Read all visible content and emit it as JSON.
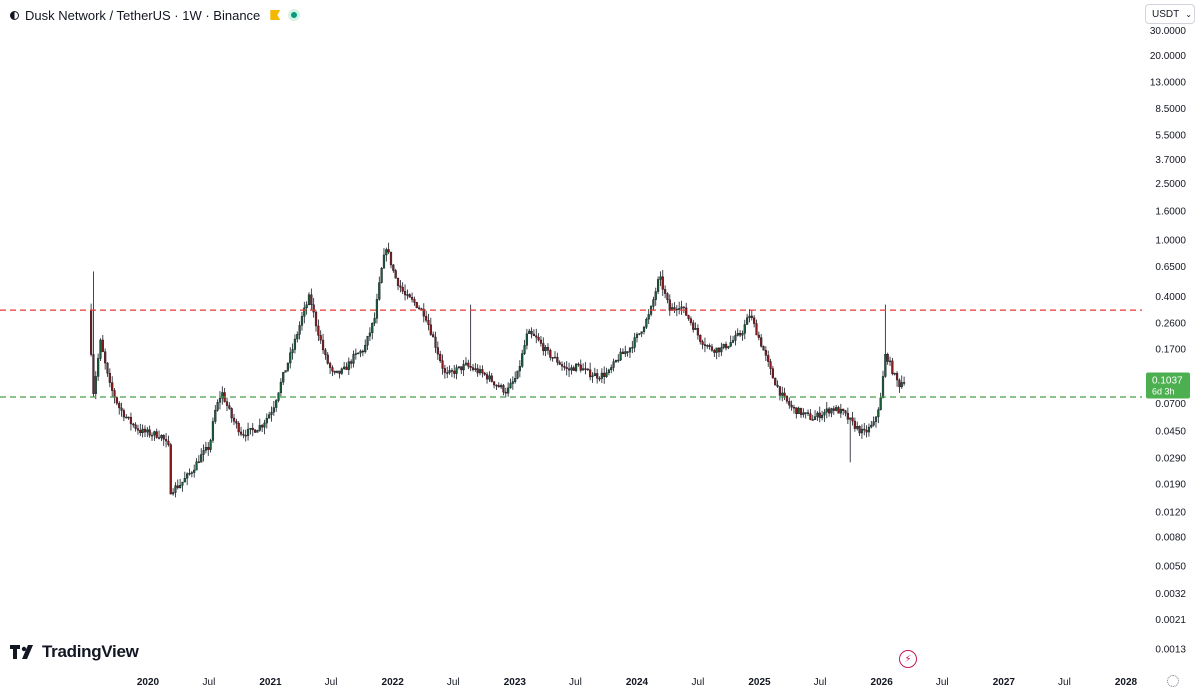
{
  "header": {
    "title": "Dusk Network / TetherUS · 1W · Binance"
  },
  "currency_select": {
    "value": "USDT"
  },
  "brand": {
    "name": "TradingView"
  },
  "colors": {
    "up": "#26a69a",
    "down": "#ef5350",
    "wick": "#131722",
    "candle_up": "#1b5e3a",
    "candle_down": "#8b1a1a",
    "resistance": "#e53935",
    "support": "#43a047",
    "price_tag": "#4caf50"
  },
  "icons": [
    "half-circle-icon",
    "flag-icon",
    "status-dot-icon",
    "chevron-down-icon",
    "tradingview-logo-icon",
    "bolt-icon",
    "settings-icon"
  ],
  "chart_data": {
    "type": "candlestick",
    "symbol": "DUSK/USDT",
    "interval": "1W",
    "scale": "log",
    "ylim": [
      0.001,
      30
    ],
    "y_ticks": [
      "30.0000",
      "20.0000",
      "13.0000",
      "8.5000",
      "5.5000",
      "3.7000",
      "2.5000",
      "1.6000",
      "1.0000",
      "0.6500",
      "0.4000",
      "0.2600",
      "0.1700",
      "0.0700",
      "0.0450",
      "0.0290",
      "0.0190",
      "0.0120",
      "0.0080",
      "0.0050",
      "0.0032",
      "0.0021",
      "0.0013"
    ],
    "x_labels": [
      {
        "label": "2020",
        "date": "2020-01-01",
        "bold": true
      },
      {
        "label": "Jul",
        "date": "2020-07-01",
        "bold": false
      },
      {
        "label": "2021",
        "date": "2021-01-01",
        "bold": true
      },
      {
        "label": "Jul",
        "date": "2021-07-01",
        "bold": false
      },
      {
        "label": "2022",
        "date": "2022-01-01",
        "bold": true
      },
      {
        "label": "Jul",
        "date": "2022-07-01",
        "bold": false
      },
      {
        "label": "2023",
        "date": "2023-01-01",
        "bold": true
      },
      {
        "label": "Jul",
        "date": "2023-07-01",
        "bold": false
      },
      {
        "label": "2024",
        "date": "2024-01-01",
        "bold": true
      },
      {
        "label": "Jul",
        "date": "2024-07-01",
        "bold": false
      },
      {
        "label": "2025",
        "date": "2025-01-01",
        "bold": true
      },
      {
        "label": "Jul",
        "date": "2025-07-01",
        "bold": false
      },
      {
        "label": "2026",
        "date": "2026-01-01",
        "bold": true
      },
      {
        "label": "Jul",
        "date": "2026-07-01",
        "bold": false
      },
      {
        "label": "2027",
        "date": "2027-01-01",
        "bold": true
      },
      {
        "label": "Jul",
        "date": "2027-07-01",
        "bold": false
      },
      {
        "label": "2028",
        "date": "2028-01-01",
        "bold": true
      }
    ],
    "price_path": [
      [
        "2019-07-15",
        0.32
      ],
      [
        "2019-07-29",
        0.085
      ],
      [
        "2019-08-19",
        0.19
      ],
      [
        "2019-09-15",
        0.095
      ],
      [
        "2019-10-15",
        0.065
      ],
      [
        "2019-11-15",
        0.052
      ],
      [
        "2019-12-15",
        0.045
      ],
      [
        "2020-01-15",
        0.043
      ],
      [
        "2020-02-15",
        0.042
      ],
      [
        "2020-03-10",
        0.034
      ],
      [
        "2020-03-15",
        0.017
      ],
      [
        "2020-04-15",
        0.019
      ],
      [
        "2020-05-15",
        0.023
      ],
      [
        "2020-06-15",
        0.03
      ],
      [
        "2020-07-10",
        0.035
      ],
      [
        "2020-07-25",
        0.06
      ],
      [
        "2020-08-15",
        0.085
      ],
      [
        "2020-09-15",
        0.055
      ],
      [
        "2020-10-15",
        0.043
      ],
      [
        "2020-11-15",
        0.045
      ],
      [
        "2020-12-15",
        0.05
      ],
      [
        "2021-01-15",
        0.065
      ],
      [
        "2021-02-15",
        0.11
      ],
      [
        "2021-03-15",
        0.17
      ],
      [
        "2021-04-15",
        0.3
      ],
      [
        "2021-05-05",
        0.4
      ],
      [
        "2021-05-25",
        0.25
      ],
      [
        "2021-06-20",
        0.15
      ],
      [
        "2021-07-15",
        0.11
      ],
      [
        "2021-08-15",
        0.12
      ],
      [
        "2021-09-15",
        0.15
      ],
      [
        "2021-10-15",
        0.17
      ],
      [
        "2021-11-15",
        0.28
      ],
      [
        "2021-12-05",
        0.6
      ],
      [
        "2021-12-20",
        0.9
      ],
      [
        "2022-01-15",
        0.55
      ],
      [
        "2022-02-15",
        0.4
      ],
      [
        "2022-03-15",
        0.36
      ],
      [
        "2022-04-15",
        0.3
      ],
      [
        "2022-05-10",
        0.2
      ],
      [
        "2022-06-15",
        0.11
      ],
      [
        "2022-07-15",
        0.12
      ],
      [
        "2022-08-15",
        0.13
      ],
      [
        "2022-09-15",
        0.12
      ],
      [
        "2022-10-15",
        0.11
      ],
      [
        "2022-11-15",
        0.095
      ],
      [
        "2022-12-15",
        0.085
      ],
      [
        "2023-01-15",
        0.11
      ],
      [
        "2023-02-15",
        0.22
      ],
      [
        "2023-03-15",
        0.2
      ],
      [
        "2023-04-15",
        0.16
      ],
      [
        "2023-05-15",
        0.14
      ],
      [
        "2023-06-15",
        0.12
      ],
      [
        "2023-07-15",
        0.13
      ],
      [
        "2023-08-15",
        0.115
      ],
      [
        "2023-09-15",
        0.11
      ],
      [
        "2023-10-15",
        0.115
      ],
      [
        "2023-11-15",
        0.15
      ],
      [
        "2023-12-15",
        0.17
      ],
      [
        "2024-01-15",
        0.22
      ],
      [
        "2024-02-15",
        0.3
      ],
      [
        "2024-03-15",
        0.55
      ],
      [
        "2024-04-15",
        0.32
      ],
      [
        "2024-05-15",
        0.35
      ],
      [
        "2024-06-15",
        0.27
      ],
      [
        "2024-07-15",
        0.2
      ],
      [
        "2024-08-15",
        0.17
      ],
      [
        "2024-09-15",
        0.17
      ],
      [
        "2024-10-15",
        0.19
      ],
      [
        "2024-11-15",
        0.22
      ],
      [
        "2024-12-10",
        0.3
      ],
      [
        "2025-01-15",
        0.18
      ],
      [
        "2025-02-15",
        0.11
      ],
      [
        "2025-03-15",
        0.08
      ],
      [
        "2025-04-15",
        0.065
      ],
      [
        "2025-05-15",
        0.06
      ],
      [
        "2025-06-15",
        0.055
      ],
      [
        "2025-07-15",
        0.06
      ],
      [
        "2025-08-15",
        0.065
      ],
      [
        "2025-09-15",
        0.06
      ],
      [
        "2025-10-15",
        0.05
      ],
      [
        "2025-11-15",
        0.043
      ],
      [
        "2025-12-15",
        0.05
      ],
      [
        "2026-01-05",
        0.075
      ],
      [
        "2026-01-20",
        0.16
      ],
      [
        "2026-02-15",
        0.11
      ],
      [
        "2026-03-01",
        0.095
      ],
      [
        "2026-03-15",
        0.1037
      ]
    ],
    "wick_spikes": [
      {
        "date": "2019-07-22",
        "high": 0.6
      },
      {
        "date": "2022-08-22",
        "high": 0.35
      },
      {
        "date": "2025-09-29",
        "low": 0.027
      },
      {
        "date": "2026-01-12",
        "high": 0.35
      }
    ],
    "horizontal_lines": [
      {
        "name": "resistance",
        "price": 0.32,
        "style": "dashed"
      },
      {
        "name": "support",
        "price": 0.078,
        "style": "dashed"
      }
    ],
    "last_price": {
      "value": "0.1037",
      "countdown": "6d 3h"
    }
  }
}
